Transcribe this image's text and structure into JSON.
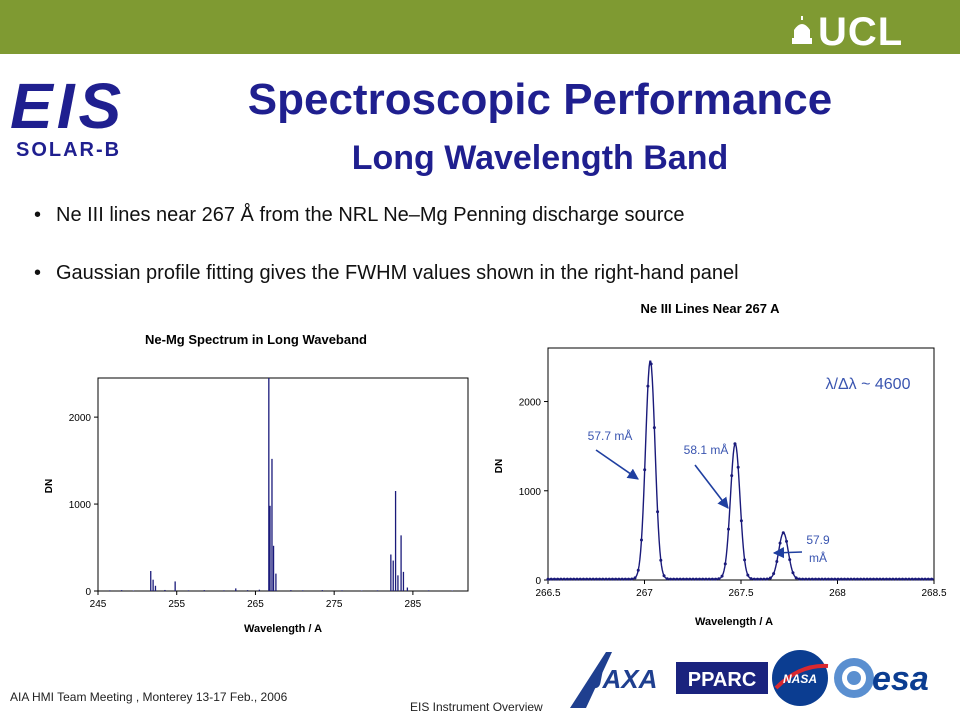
{
  "header": {
    "ucl_logo_text": "UCL",
    "eis_logo_text": "EIS",
    "eis_logo_subtext": "SOLAR-B",
    "title": "Spectroscopic Performance",
    "subtitle": "Long Wavelength Band"
  },
  "bullets": [
    "Ne III lines near 267 Å from the NRL Ne–Mg Penning discharge source",
    "Gaussian profile fitting gives the FWHM values shown in the right-hand panel"
  ],
  "chart_data": [
    {
      "type": "bar",
      "title": "Ne-Mg Spectrum in Long Waveband",
      "xlabel": "Wavelength / A",
      "ylabel": "DN",
      "xlim": [
        245,
        292
      ],
      "ylim": [
        0,
        2450
      ],
      "xticks": [
        245,
        255,
        265,
        275,
        285
      ],
      "yticks": [
        0,
        1000,
        2000
      ],
      "grid": false,
      "lines": [
        {
          "x": 246.5,
          "y": 8
        },
        {
          "x": 248.0,
          "y": 10
        },
        {
          "x": 249.5,
          "y": 6
        },
        {
          "x": 251.7,
          "y": 230
        },
        {
          "x": 252.0,
          "y": 130
        },
        {
          "x": 252.3,
          "y": 60
        },
        {
          "x": 253.5,
          "y": 12
        },
        {
          "x": 254.8,
          "y": 110
        },
        {
          "x": 256.5,
          "y": 8
        },
        {
          "x": 258.5,
          "y": 10
        },
        {
          "x": 261.0,
          "y": 8
        },
        {
          "x": 262.5,
          "y": 30
        },
        {
          "x": 264.0,
          "y": 10
        },
        {
          "x": 265.5,
          "y": 15
        },
        {
          "x": 266.7,
          "y": 2450
        },
        {
          "x": 266.85,
          "y": 980
        },
        {
          "x": 267.1,
          "y": 1520
        },
        {
          "x": 267.3,
          "y": 520
        },
        {
          "x": 267.6,
          "y": 200
        },
        {
          "x": 269.5,
          "y": 10
        },
        {
          "x": 271.0,
          "y": 8
        },
        {
          "x": 273.5,
          "y": 10
        },
        {
          "x": 276.0,
          "y": 8
        },
        {
          "x": 278.5,
          "y": 6
        },
        {
          "x": 280.5,
          "y": 8
        },
        {
          "x": 282.2,
          "y": 420
        },
        {
          "x": 282.5,
          "y": 350
        },
        {
          "x": 282.8,
          "y": 1150
        },
        {
          "x": 283.1,
          "y": 180
        },
        {
          "x": 283.5,
          "y": 640
        },
        {
          "x": 283.8,
          "y": 220
        },
        {
          "x": 284.3,
          "y": 40
        },
        {
          "x": 287.0,
          "y": 8
        },
        {
          "x": 290.0,
          "y": 6
        }
      ]
    },
    {
      "type": "line",
      "title": "Ne III Lines Near 267 A",
      "xlabel": "Wavelength / A",
      "ylabel": "DN",
      "xlim": [
        266.5,
        268.5
      ],
      "ylim": [
        0,
        2600
      ],
      "xticks": [
        266.5,
        267,
        267.5,
        268,
        268.5
      ],
      "yticks": [
        0,
        1000,
        2000
      ],
      "grid": false,
      "peaks": [
        {
          "center": 267.03,
          "amplitude": 2450,
          "fwhm": 0.058
        },
        {
          "center": 267.47,
          "amplitude": 1520,
          "fwhm": 0.058
        },
        {
          "center": 267.72,
          "amplitude": 520,
          "fwhm": 0.058
        }
      ],
      "baseline": 10,
      "marker_step": 0.0167,
      "series_color": "#1a1a7a",
      "resolution_label": "λ/Δλ ~ 4600",
      "annotations": [
        {
          "text": "57.7 mÅ",
          "peak_index": 0
        },
        {
          "text": "58.1 mÅ",
          "peak_index": 1
        },
        {
          "text": "57.9",
          "text2": "mÅ",
          "peak_index": 2
        }
      ]
    }
  ],
  "footer": {
    "meeting": "AIA HMI Team Meeting , Monterey  13-17 Feb., 2006",
    "instrument": "EIS Instrument Overview"
  },
  "agencies": {
    "jaxa": "JAXA",
    "pparc": "PPARC",
    "nasa": "NASA",
    "esa": "esa"
  },
  "colors": {
    "topbar": "#7f9a32",
    "title": "#1f1f8f",
    "eis_logo": "#1f1f8f",
    "annotation_arrow": "#1f3fa0",
    "annotation_text": "#3a55b0"
  }
}
